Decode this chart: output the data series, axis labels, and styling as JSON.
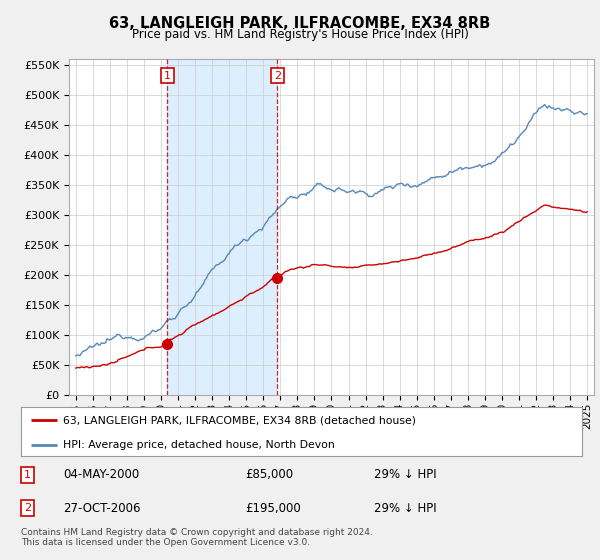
{
  "title": "63, LANGLEIGH PARK, ILFRACOMBE, EX34 8RB",
  "subtitle": "Price paid vs. HM Land Registry's House Price Index (HPI)",
  "legend_line1": "63, LANGLEIGH PARK, ILFRACOMBE, EX34 8RB (detached house)",
  "legend_line2": "HPI: Average price, detached house, North Devon",
  "transaction1_date": "04-MAY-2000",
  "transaction1_price": "£85,000",
  "transaction1_hpi": "29% ↓ HPI",
  "transaction2_date": "27-OCT-2006",
  "transaction2_price": "£195,000",
  "transaction2_hpi": "29% ↓ HPI",
  "footer": "Contains HM Land Registry data © Crown copyright and database right 2024.\nThis data is licensed under the Open Government Licence v3.0.",
  "red_color": "#cc0000",
  "blue_color": "#5588bb",
  "shade_color": "#ddeeff",
  "background_color": "#f0f0f0",
  "plot_bg_color": "#ffffff",
  "grid_color": "#cccccc",
  "marker1_year": 2000.37,
  "marker1_price": 85000,
  "marker2_year": 2006.83,
  "marker2_price": 195000,
  "dashed_x1": 2000.37,
  "dashed_x2": 2006.83,
  "ylim_min": 0,
  "ylim_max": 560000,
  "xlim_min": 1994.6,
  "xlim_max": 2025.4,
  "yticks": [
    0,
    50000,
    100000,
    150000,
    200000,
    250000,
    300000,
    350000,
    400000,
    450000,
    500000,
    550000
  ]
}
